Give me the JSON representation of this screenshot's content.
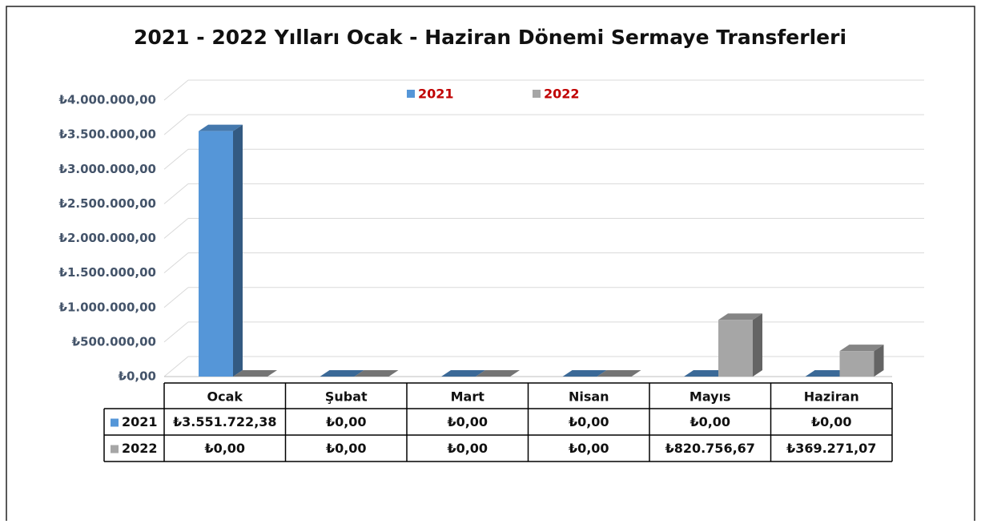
{
  "chart_data": {
    "type": "bar",
    "title": "2021 - 2022 Yılları Ocak - Haziran Dönemi Sermaye Transferleri",
    "categories": [
      "Ocak",
      "Şubat",
      "Mart",
      "Nisan",
      "Mayıs",
      "Haziran"
    ],
    "series": [
      {
        "name": "2021",
        "color": "#5596d8",
        "values": [
          3551722.38,
          0,
          0,
          0,
          0,
          0
        ],
        "value_labels": [
          "₺3.551.722,38",
          "₺0,00",
          "₺0,00",
          "₺0,00",
          "₺0,00",
          "₺0,00"
        ]
      },
      {
        "name": "2022",
        "color": "#a6a6a6",
        "values": [
          0,
          0,
          0,
          0,
          820756.67,
          369271.07
        ],
        "value_labels": [
          "₺0,00",
          "₺0,00",
          "₺0,00",
          "₺0,00",
          "₺820.756,67",
          "₺369.271,07"
        ]
      }
    ],
    "ylim": [
      0,
      4000000
    ],
    "yticks": [
      {
        "value": 0,
        "label": "₺0,00"
      },
      {
        "value": 500000,
        "label": "₺500.000,00"
      },
      {
        "value": 1000000,
        "label": "₺1.000.000,00"
      },
      {
        "value": 1500000,
        "label": "₺1.500.000,00"
      },
      {
        "value": 2000000,
        "label": "₺2.000.000,00"
      },
      {
        "value": 2500000,
        "label": "₺2.500.000,00"
      },
      {
        "value": 3000000,
        "label": "₺3.000.000,00"
      },
      {
        "value": 3500000,
        "label": "₺3.500.000,00"
      },
      {
        "value": 4000000,
        "label": "₺4.000.000,00"
      }
    ],
    "grid": true,
    "legend": "top"
  }
}
